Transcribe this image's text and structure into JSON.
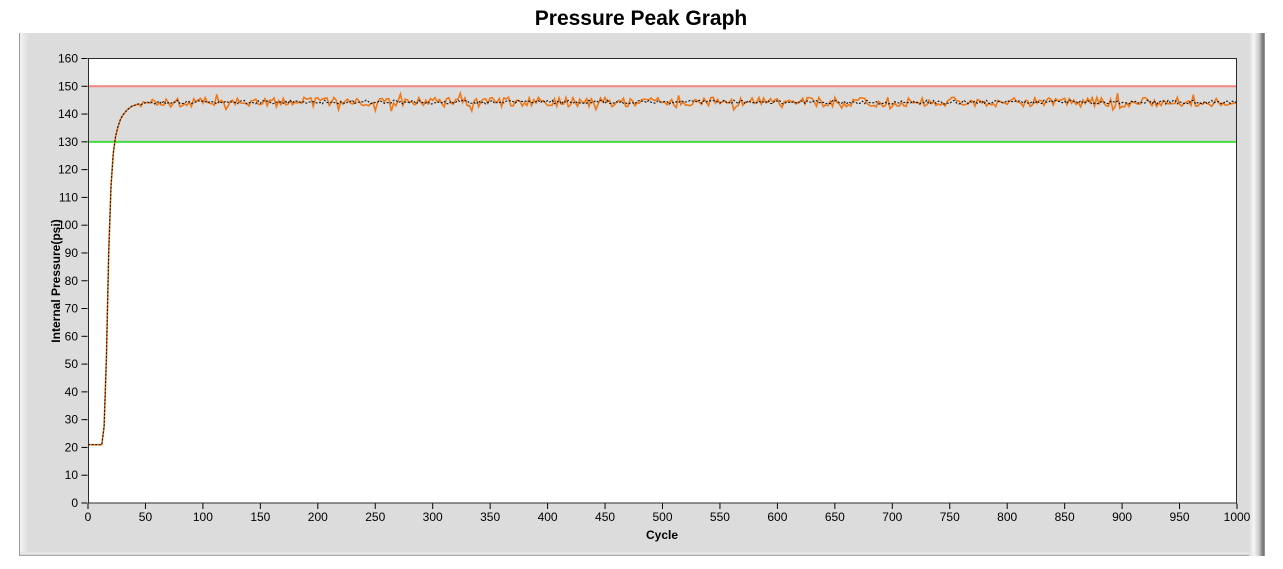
{
  "window": {
    "background": "#ffffff"
  },
  "panel": {
    "background": "#dcdcdc"
  },
  "chart_data": {
    "type": "line",
    "title": "Pressure Peak Graph",
    "xlabel": "Cycle",
    "ylabel": "Internal Pressure(psi)",
    "xlim": [
      0,
      1000
    ],
    "ylim": [
      0,
      160
    ],
    "xticks": [
      0,
      50,
      100,
      150,
      200,
      250,
      300,
      350,
      400,
      450,
      500,
      550,
      600,
      650,
      700,
      750,
      800,
      850,
      900,
      950,
      1000
    ],
    "yticks": [
      0,
      10,
      20,
      30,
      40,
      50,
      60,
      70,
      80,
      90,
      100,
      110,
      120,
      130,
      140,
      150,
      160
    ],
    "grid": false,
    "legend": "none",
    "plot_background": "#ffffff",
    "plot_border_color": "#2b2b2b",
    "tick_color": "#000000",
    "band": {
      "from": 130,
      "to": 150,
      "color": "#dcdcdc"
    },
    "reference_lines": [
      {
        "name": "upper-limit",
        "value": 150,
        "color": "#f28484"
      },
      {
        "name": "lower-limit",
        "value": 130,
        "color": "#44dd44"
      }
    ],
    "series": [
      {
        "name": "internal-pressure",
        "line_color": "#f07818",
        "marker_color": "#141414",
        "description": "Starts at 21 psi, flat until cycle ~13, rises steeply to ~144 psi by cycle ~45, then steady at ~144 psi with about +/-2 psi noise through cycle 1000",
        "keypoints": [
          [
            0,
            21
          ],
          [
            13,
            21
          ],
          [
            15,
            34
          ],
          [
            16,
            52
          ],
          [
            17,
            72
          ],
          [
            18,
            90
          ],
          [
            19,
            104
          ],
          [
            20,
            114
          ],
          [
            22,
            126
          ],
          [
            24,
            132
          ],
          [
            27,
            137
          ],
          [
            30,
            139.5
          ],
          [
            34,
            141.5
          ],
          [
            38,
            142.8
          ],
          [
            45,
            143.8
          ],
          [
            60,
            144.3
          ],
          [
            1000,
            144.3
          ]
        ],
        "steady_from": 45,
        "steady_mean": 144.3,
        "noise_amp": 1.3,
        "sample_step": 2
      }
    ]
  }
}
